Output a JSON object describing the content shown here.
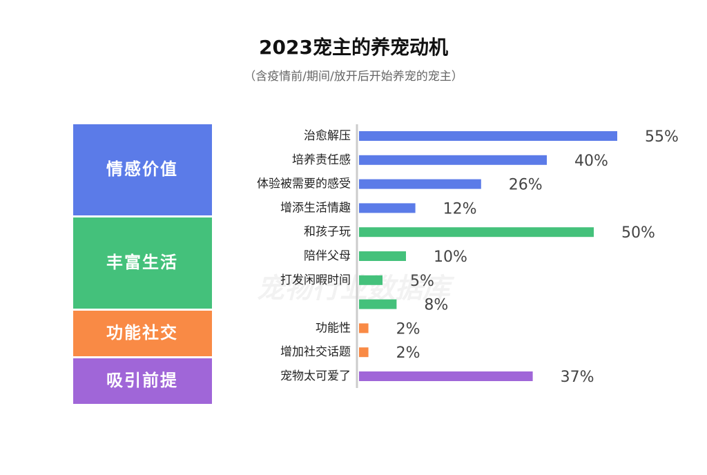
{
  "chart_data": {
    "type": "bar",
    "orientation": "horizontal",
    "title": "2023宠主的养宠动机",
    "subtitle": "（含疫情前/期间/放开后开始养宠的宠主）",
    "watermark": "宠物行业数据库",
    "groups": [
      {
        "name": "情感价值",
        "color": "#5b7be8",
        "categories": [
          "治愈解压",
          "培养责任感",
          "体验被需要的感受",
          "增添生活情趣"
        ],
        "values": [
          55,
          40,
          26,
          12
        ],
        "value_labels": [
          "55%",
          "40%",
          "26%",
          "12%"
        ]
      },
      {
        "name": "丰富生活",
        "color": "#44c17b",
        "categories": [
          "和孩子玩",
          "陪伴父母",
          "打发闲暇时间",
          ""
        ],
        "values": [
          50,
          10,
          5,
          8
        ],
        "value_labels": [
          "50%",
          "10%",
          "5%",
          "8%"
        ]
      },
      {
        "name": "功能社交",
        "color": "#f98a45",
        "categories": [
          "功能性",
          "增加社交话题"
        ],
        "values": [
          2,
          2
        ],
        "value_labels": [
          "2%",
          "2%"
        ]
      },
      {
        "name": "吸引前提",
        "color": "#a066d8",
        "categories": [
          "宠物太可爱了"
        ],
        "values": [
          37
        ],
        "value_labels": [
          "37%"
        ]
      }
    ]
  }
}
